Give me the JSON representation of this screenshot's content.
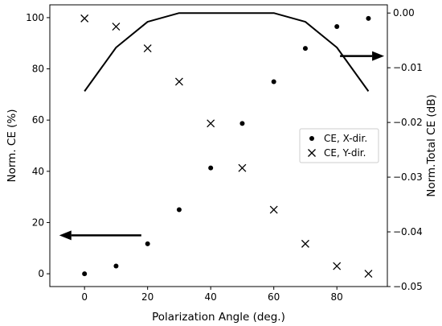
{
  "chart_data": {
    "type": "scatter",
    "xlabel": "Polarization Angle (deg.)",
    "ylabel": "Norm. CE (%)",
    "y2label": "Norm.Total CE (dB)",
    "xlim": [
      -11,
      96
    ],
    "ylim": [
      -5,
      105
    ],
    "y2lim": [
      -0.05,
      0.0015
    ],
    "x_ticks": [
      0,
      20,
      40,
      60,
      80
    ],
    "y_ticks": [
      0,
      20,
      40,
      60,
      80,
      100
    ],
    "y2_ticks": [
      -0.05,
      -0.04,
      -0.03,
      -0.02,
      -0.01,
      0.0
    ],
    "x_tick_labels": [
      "0",
      "20",
      "40",
      "60",
      "80"
    ],
    "y_tick_labels": [
      "0",
      "20",
      "40",
      "60",
      "80",
      "100"
    ],
    "y2_tick_labels": [
      "−0.05",
      "−0.04",
      "−0.03",
      "−0.02",
      "−0.01",
      "0.00"
    ],
    "legend_position": "center-right",
    "grid": false,
    "series": [
      {
        "name": "CE, X-dir.",
        "marker": "dot",
        "axis": "left",
        "x": [
          0,
          10,
          20,
          30,
          40,
          50,
          60,
          70,
          80,
          90
        ],
        "y": [
          0,
          3,
          11.7,
          25,
          41.3,
          58.7,
          75,
          88,
          96.5,
          99.7
        ]
      },
      {
        "name": "CE, Y-dir.",
        "marker": "x",
        "axis": "left",
        "x": [
          0,
          10,
          20,
          30,
          40,
          50,
          60,
          70,
          80,
          90
        ],
        "y": [
          99.7,
          96.5,
          88,
          75,
          58.7,
          41.3,
          25,
          11.7,
          3,
          0
        ]
      },
      {
        "marker": "line",
        "axis": "right",
        "x": [
          0,
          10,
          20,
          30,
          40,
          50,
          60,
          70,
          80,
          90
        ],
        "y": [
          -0.0143,
          -0.0063,
          -0.0016,
          0.0,
          0.0,
          0.0,
          0.0,
          -0.0016,
          -0.0063,
          -0.0143
        ]
      }
    ],
    "annotations": [
      {
        "type": "arrow",
        "from": [
          18,
          15
        ],
        "to": [
          -8,
          15
        ],
        "axis": "left",
        "meaning": "points to left axis"
      },
      {
        "type": "arrow",
        "from": [
          81,
          85
        ],
        "to": [
          95,
          85
        ],
        "axis": "left",
        "meaning": "points to right axis"
      }
    ],
    "colors": {
      "marks": "#000000",
      "legend_border": "#cccccc",
      "background": "#ffffff"
    }
  }
}
